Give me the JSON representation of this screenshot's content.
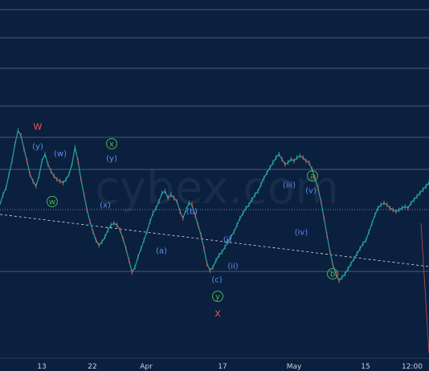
{
  "chart_data": {
    "type": "line",
    "title": "",
    "xlabel": "",
    "ylabel": "",
    "watermark": "cybex.com",
    "x_ticks": [
      "13",
      "22",
      "Apr",
      "17",
      "May",
      "15",
      "12:00"
    ],
    "series": [
      {
        "values": [
          0.0,
          0.6,
          1.0,
          1.8,
          2.6,
          3.6,
          4.4,
          4.1,
          3.3,
          2.6,
          1.8,
          1.4,
          1.1,
          1.7,
          2.6,
          3.0,
          2.4,
          2.0,
          1.7,
          1.5,
          1.4,
          1.3,
          1.5,
          1.8,
          2.4,
          3.4,
          2.6,
          1.5,
          0.6,
          -0.3,
          -1.0,
          -1.6,
          -2.1,
          -2.4,
          -2.2,
          -1.9,
          -1.5,
          -1.2,
          -1.1,
          -1.2,
          -1.5,
          -2.0,
          -2.6,
          -3.3,
          -4.0,
          -3.7,
          -3.1,
          -2.6,
          -2.1,
          -1.6,
          -1.0,
          -0.5,
          -0.2,
          0.2,
          0.7,
          0.8,
          0.4,
          0.6,
          0.4,
          0.2,
          -0.4,
          -0.8,
          -0.3,
          0.1,
          0.0,
          -0.6,
          -1.2,
          -1.8,
          -2.6,
          -3.5,
          -3.9,
          -3.7,
          -3.3,
          -3.0,
          -2.8,
          -2.5,
          -2.2,
          -1.9,
          -1.6,
          -1.2,
          -0.8,
          -0.5,
          -0.2,
          0.0,
          0.3,
          0.6,
          0.8,
          1.2,
          1.6,
          1.9,
          2.2,
          2.5,
          2.8,
          3.0,
          2.7,
          2.4,
          2.5,
          2.7,
          2.6,
          2.8,
          2.9,
          2.8,
          2.6,
          2.5,
          2.1,
          1.6,
          1.0,
          0.2,
          -0.8,
          -1.8,
          -2.8,
          -3.6,
          -4.1,
          -4.5,
          -4.3,
          -4.1,
          -3.8,
          -3.5,
          -3.2,
          -2.9,
          -2.6,
          -2.3,
          -2.1,
          -1.6,
          -1.1,
          -0.6,
          -0.2,
          0.0,
          0.1,
          0.0,
          -0.2,
          -0.3,
          -0.4,
          -0.3,
          -0.2,
          -0.1,
          -0.2,
          0.1,
          0.3,
          0.5,
          0.7,
          0.9,
          1.1,
          1.3
        ],
        "y_range": [
          -5,
          5
        ]
      }
    ],
    "ylim": [
      -5,
      5
    ],
    "grid": "horizontal",
    "colors": {
      "background": "#0b1f3f",
      "grid": "#ffffff",
      "line": "#26a69a",
      "wave_blue": "#5b8def",
      "wave_green": "#4caf50",
      "wave_red": "#ef5350",
      "dashed": "#e0e0e0"
    },
    "wave_labels": [
      {
        "text": "W",
        "color": "red",
        "circled": false
      },
      {
        "text": "(y)",
        "color": "blue",
        "circled": false
      },
      {
        "text": "(w)",
        "color": "blue",
        "circled": false
      },
      {
        "text": "w",
        "color": "green",
        "circled": true
      },
      {
        "text": "x",
        "color": "green",
        "circled": true
      },
      {
        "text": "(y)",
        "color": "blue",
        "circled": false
      },
      {
        "text": "(x)",
        "color": "blue",
        "circled": false
      },
      {
        "text": "(a)",
        "color": "blue",
        "circled": false
      },
      {
        "text": "(b)",
        "color": "blue",
        "circled": false
      },
      {
        "text": "(c)",
        "color": "blue",
        "circled": false
      },
      {
        "text": "y",
        "color": "green",
        "circled": true
      },
      {
        "text": "X",
        "color": "red",
        "circled": false
      },
      {
        "text": "(i)",
        "color": "blue",
        "circled": false
      },
      {
        "text": "(ii)",
        "color": "blue",
        "circled": false
      },
      {
        "text": "(iii)",
        "color": "blue",
        "circled": false
      },
      {
        "text": "(iv)",
        "color": "blue",
        "circled": false
      },
      {
        "text": "(v)",
        "color": "blue",
        "circled": false
      },
      {
        "text": "a",
        "color": "green",
        "circled": true
      },
      {
        "text": "b",
        "color": "green",
        "circled": true
      }
    ]
  }
}
